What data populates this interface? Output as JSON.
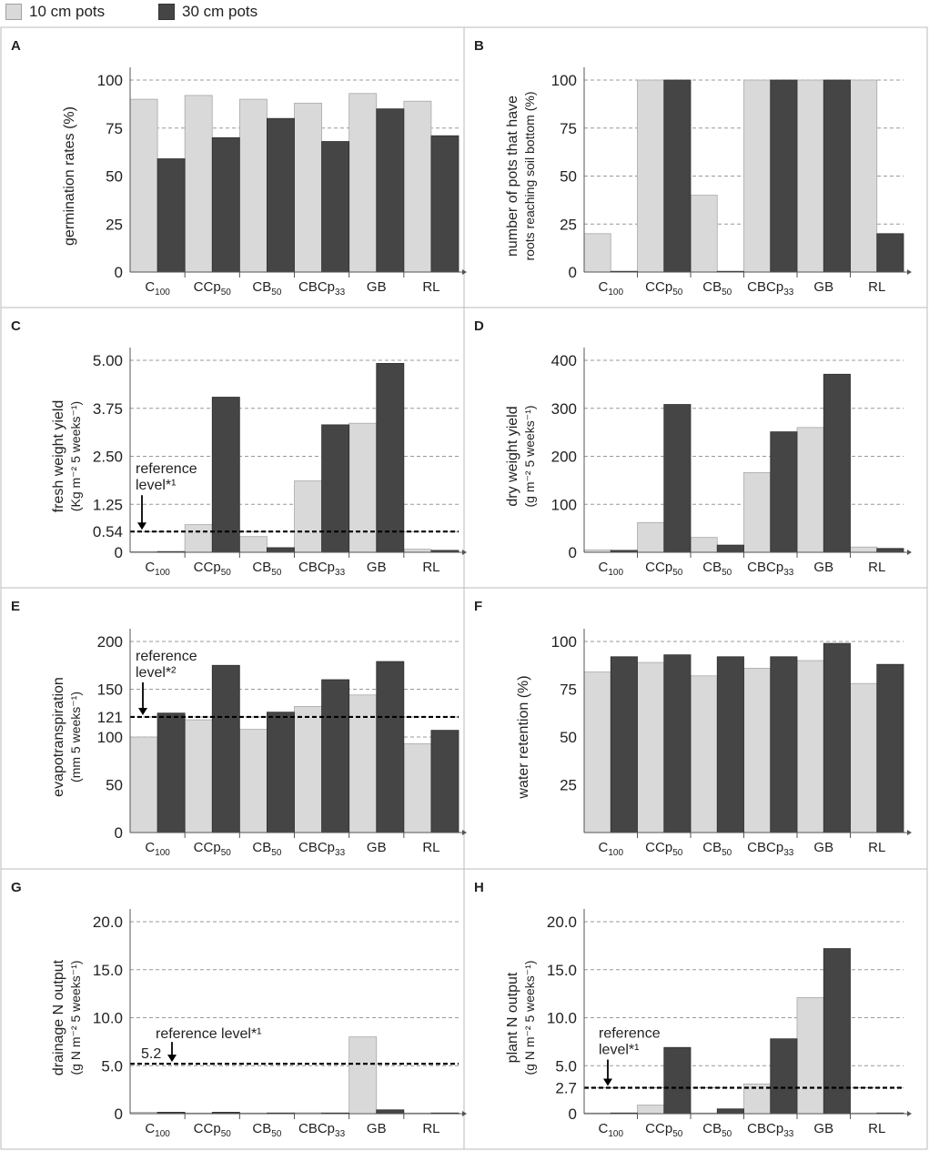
{
  "legend": {
    "items": [
      {
        "label": "10 cm pots",
        "color": "#d9d9d9"
      },
      {
        "label": "30 cm pots",
        "color": "#454545"
      }
    ]
  },
  "colors": {
    "light": "#d9d9d9",
    "dark": "#454545",
    "axis": "#555555",
    "grid": "#999999",
    "border": "#bbbbbb"
  },
  "categories": [
    {
      "base": "C",
      "sub": "100"
    },
    {
      "base": "CCp",
      "sub": "50"
    },
    {
      "base": "CB",
      "sub": "50"
    },
    {
      "base": "CBCp",
      "sub": "33"
    },
    {
      "base": "GB",
      "sub": ""
    },
    {
      "base": "RL",
      "sub": ""
    }
  ],
  "chart_data": [
    {
      "panel": "A",
      "type": "bar",
      "ylabel": [
        "germination rates (%)"
      ],
      "ylim": [
        0,
        100
      ],
      "yticks": [
        "0",
        "25",
        "50",
        "75",
        "100"
      ],
      "ytick_values": [
        0,
        25,
        50,
        75,
        100
      ],
      "grid": true,
      "series": [
        {
          "name": "10 cm pots",
          "values": [
            90,
            92,
            90,
            88,
            93,
            89
          ]
        },
        {
          "name": "30 cm pots",
          "values": [
            59,
            70,
            80,
            68,
            85,
            71
          ]
        }
      ]
    },
    {
      "panel": "B",
      "type": "bar",
      "ylabel": [
        "number of pots that have",
        "roots reaching soil bottom (%)"
      ],
      "ylim": [
        0,
        100
      ],
      "yticks": [
        "0",
        "25",
        "50",
        "75",
        "100"
      ],
      "ytick_values": [
        0,
        25,
        50,
        75,
        100
      ],
      "grid": true,
      "series": [
        {
          "name": "10 cm pots",
          "values": [
            20,
            100,
            40,
            100,
            100,
            100
          ]
        },
        {
          "name": "30 cm pots",
          "values": [
            0,
            100,
            0,
            100,
            100,
            20
          ]
        }
      ]
    },
    {
      "panel": "C",
      "type": "bar",
      "ylabel": [
        "fresh weight yield",
        "(Kg m⁻² 5 weeks⁻¹)"
      ],
      "ylim": [
        0,
        5
      ],
      "yticks": [
        "0",
        "0.54",
        "1.25",
        "2.50",
        "3.75",
        "5.00"
      ],
      "ytick_values": [
        0,
        0.54,
        1.25,
        2.5,
        3.75,
        5.0
      ],
      "grid": true,
      "reference": {
        "value": 0.54,
        "label": [
          "reference",
          "level*¹"
        ]
      },
      "series": [
        {
          "name": "10 cm pots",
          "values": [
            0.01,
            0.72,
            0.41,
            1.86,
            3.36,
            0.08
          ]
        },
        {
          "name": "30 cm pots",
          "values": [
            0.01,
            4.04,
            0.12,
            3.32,
            4.92,
            0.05
          ]
        }
      ]
    },
    {
      "panel": "D",
      "type": "bar",
      "ylabel": [
        "dry weight yield",
        "(g m⁻² 5 weeks⁻¹)"
      ],
      "ylim": [
        0,
        400
      ],
      "yticks": [
        "0",
        "100",
        "200",
        "300",
        "400"
      ],
      "ytick_values": [
        0,
        100,
        200,
        300,
        400
      ],
      "grid": true,
      "series": [
        {
          "name": "10 cm pots",
          "values": [
            5,
            62,
            31,
            166,
            260,
            11
          ]
        },
        {
          "name": "30 cm pots",
          "values": [
            4,
            308,
            15,
            251,
            371,
            8
          ]
        }
      ]
    },
    {
      "panel": "E",
      "type": "bar",
      "ylabel": [
        "evapotranspiration",
        "(mm 5 weeks⁻¹)"
      ],
      "ylim": [
        0,
        200
      ],
      "yticks": [
        "0",
        "50",
        "100",
        "121",
        "150",
        "200"
      ],
      "ytick_values": [
        0,
        50,
        100,
        121,
        150,
        200
      ],
      "grid": true,
      "reference": {
        "value": 121,
        "label": [
          "reference",
          "level*²"
        ]
      },
      "series": [
        {
          "name": "10 cm pots",
          "values": [
            100,
            118,
            108,
            132,
            144,
            93
          ]
        },
        {
          "name": "30 cm pots",
          "values": [
            125,
            175,
            126,
            160,
            179,
            107
          ]
        }
      ]
    },
    {
      "panel": "F",
      "type": "bar",
      "ylabel": [
        "water retention (%)"
      ],
      "ylim": [
        0,
        100
      ],
      "yticks": [
        "25",
        "50",
        "75",
        "100"
      ],
      "ytick_values": [
        25,
        50,
        75,
        100
      ],
      "grid": true,
      "series": [
        {
          "name": "10 cm pots",
          "values": [
            84,
            89,
            82,
            86,
            90,
            78
          ]
        },
        {
          "name": "30 cm pots",
          "values": [
            92,
            93,
            92,
            92,
            99,
            88
          ]
        }
      ]
    },
    {
      "panel": "G",
      "type": "bar",
      "ylabel": [
        "drainage N output",
        "(g N m⁻² 5 weeks⁻¹)"
      ],
      "ylim": [
        0,
        20
      ],
      "yticks": [
        "0",
        "5.0",
        "10.0",
        "15.0",
        "20.0"
      ],
      "ytick_values": [
        0,
        5,
        10,
        15,
        20
      ],
      "grid": true,
      "reference": {
        "value": 5.2,
        "label": [
          "reference level*¹"
        ],
        "value_label": "5.2"
      },
      "series": [
        {
          "name": "10 cm pots",
          "values": [
            0.15,
            0.05,
            0.05,
            0.1,
            8.0,
            0.05
          ]
        },
        {
          "name": "30 cm pots",
          "values": [
            0.15,
            0.15,
            0.05,
            0.05,
            0.4,
            0.02
          ]
        }
      ]
    },
    {
      "panel": "H",
      "type": "bar",
      "ylabel": [
        "plant N output",
        "(g N m⁻² 5 weeks⁻¹)"
      ],
      "ylim": [
        0,
        20
      ],
      "yticks": [
        "0",
        "2.7",
        "5.0",
        "10.0",
        "15.0",
        "20.0"
      ],
      "ytick_values": [
        0,
        2.7,
        5,
        10,
        15,
        20
      ],
      "grid": true,
      "reference": {
        "value": 2.7,
        "label": [
          "reference",
          "level*¹"
        ]
      },
      "series": [
        {
          "name": "10 cm pots",
          "values": [
            0.0,
            0.9,
            0.0,
            3.1,
            12.1,
            0.05
          ]
        },
        {
          "name": "30 cm pots",
          "values": [
            0.0,
            6.9,
            0.5,
            7.8,
            17.2,
            0.05
          ]
        }
      ]
    }
  ]
}
